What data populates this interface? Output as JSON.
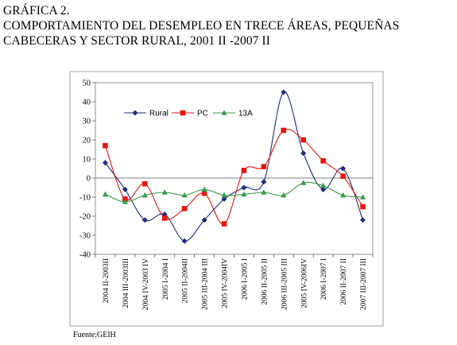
{
  "figure": {
    "label": "GRÁFICA 2.",
    "title_line1": "COMPORTAMIENTO DEL DESEMPLEO EN TRECE ÁREAS, PEQUEÑAS",
    "title_line2": "CABECERAS Y SECTOR RURAL, 2001 II -2007 II",
    "source": "Fuente:GEIH"
  },
  "chart_data": {
    "type": "line",
    "categories": [
      "2004 II-2003II",
      "2004 III-2003III",
      "2004 IV-2003 IV",
      "2005 I-2004 I",
      "2005 II-2004II",
      "2005 III-2004 III",
      "2005 IV-2004IV",
      "2006 I-2005 I",
      "2006 II-2005 II",
      "2006 III-2005 III",
      "2005 IV-2006IV",
      "2006 I-2007 I",
      "2006 II-2007 II",
      "2007 III-2007 III"
    ],
    "series": [
      {
        "name": "Rural",
        "color": "#1f2a7a",
        "marker": "diamond",
        "values": [
          8,
          -6,
          -22,
          -19,
          -33,
          -22,
          -11,
          -5,
          -2,
          45,
          13,
          -6,
          5,
          -22
        ]
      },
      {
        "name": "PC",
        "color": "#e8140e",
        "marker": "square",
        "values": [
          17,
          -11,
          -3,
          -21,
          -16,
          -8,
          -24,
          4,
          6,
          25,
          20,
          9,
          1,
          -15
        ]
      },
      {
        "name": "13A",
        "color": "#3a9a4a",
        "marker": "triangle",
        "values": [
          -8.5,
          -12.5,
          -9,
          -7.5,
          -9,
          -6,
          -9,
          -8.5,
          -7.5,
          -9,
          -2.5,
          -4,
          -9,
          -10
        ]
      }
    ],
    "ylim": [
      -40,
      50
    ],
    "yticks": [
      50,
      40,
      30,
      20,
      10,
      0,
      -10,
      -20,
      -30,
      -40
    ],
    "smooth": true,
    "grid": false,
    "legend": "top-left, inside plot",
    "xlabel": "",
    "ylabel": ""
  }
}
